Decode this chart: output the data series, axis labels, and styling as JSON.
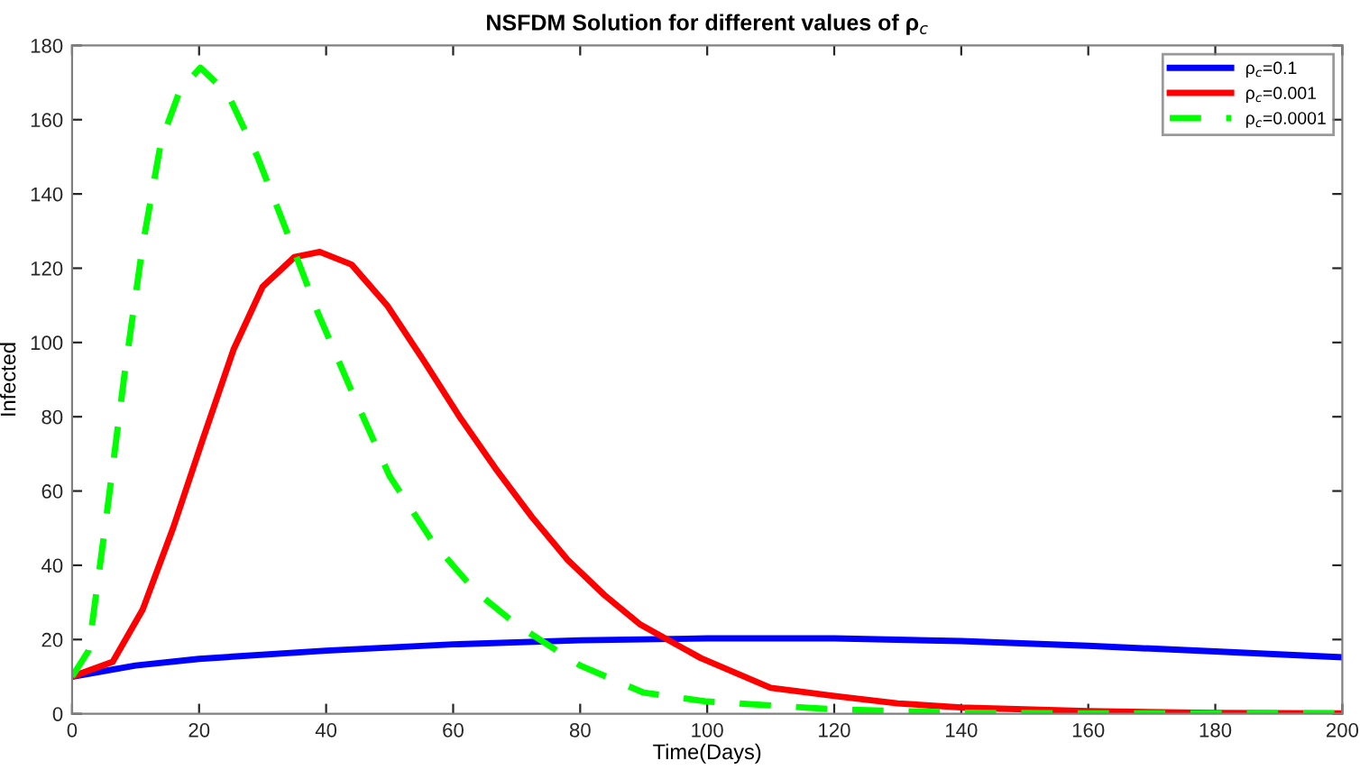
{
  "chart_data": {
    "type": "line",
    "title": "NSFDM Solution for different values of ρ$_{c}$",
    "xlabel": "Time(Days)",
    "ylabel": "Infected",
    "xlim": [
      0,
      200
    ],
    "xticks": [
      0,
      20,
      40,
      60,
      80,
      100,
      120,
      140,
      160,
      180,
      200
    ],
    "ylim": [
      0,
      180
    ],
    "yticks": [
      0,
      20,
      40,
      60,
      80,
      100,
      120,
      140,
      160,
      180
    ],
    "grid": false,
    "legend": "top right",
    "series": [
      {
        "name": "ρ$_{c}$=0.1",
        "color": "#0000ff",
        "line_style": "solid",
        "x": [
          0,
          10,
          20,
          40,
          60,
          80,
          100,
          120,
          140,
          160,
          180,
          200
        ],
        "values": [
          10,
          13,
          14.8,
          17,
          18.7,
          19.8,
          20.3,
          20.3,
          19.6,
          18.3,
          16.8,
          15.2
        ]
      },
      {
        "name": "ρ$_{c}$=0.001",
        "color": "#ff0000",
        "line_style": "solid",
        "x": [
          0,
          6.4,
          11.1,
          15.9,
          20.6,
          25.4,
          30,
          35,
          39,
          44,
          49.6,
          55.4,
          61,
          66.7,
          72.4,
          78,
          83.8,
          89.5,
          99,
          110,
          120,
          130,
          140,
          160,
          180,
          200
        ],
        "values": [
          10,
          14,
          28,
          50,
          74,
          98,
          115,
          123,
          124.4,
          121,
          110,
          95,
          80,
          66,
          53,
          41.5,
          32,
          24,
          15,
          7,
          4.8,
          2.8,
          1.7,
          0.7,
          0.2,
          0.1
        ]
      },
      {
        "name": "ρ$_{c}$=0.0001",
        "color": "#00ff00",
        "line_style": "dashed",
        "x": [
          0,
          2.6,
          5.4,
          8.3,
          11.1,
          14,
          17,
          20.2,
          24.5,
          29.2,
          34,
          38.7,
          44.5,
          50,
          56.9,
          63.5,
          70,
          80,
          90,
          100,
          120,
          140,
          160,
          180,
          200
        ],
        "values": [
          10,
          17,
          53,
          92,
          126,
          154,
          168,
          174,
          167,
          150,
          129,
          108,
          85,
          64,
          46,
          33,
          24,
          13,
          5.7,
          3.3,
          1.2,
          0.3,
          0.1,
          0.1,
          0.1
        ]
      }
    ]
  }
}
